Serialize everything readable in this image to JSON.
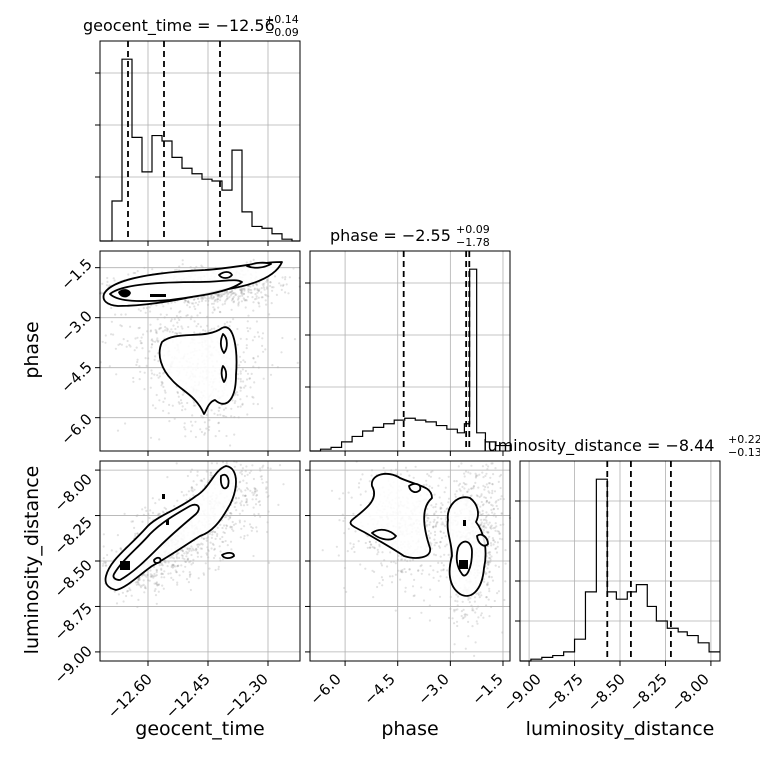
{
  "chart_data": [
    {
      "panel": "geocent_time (marginal)",
      "type": "histogram",
      "title_main": "geocent_time = −12.56",
      "title_sup": "+0.14",
      "title_sub": "−0.09",
      "median": -12.56,
      "q_low": -12.65,
      "q_high": -12.42,
      "xlim": [
        -12.72,
        -12.22
      ],
      "ylim": [
        0,
        1.1
      ],
      "bin_edges": [
        -12.72,
        -12.69,
        -12.665,
        -12.64,
        -12.615,
        -12.59,
        -12.565,
        -12.54,
        -12.515,
        -12.49,
        -12.465,
        -12.44,
        -12.415,
        -12.39,
        -12.365,
        -12.34,
        -12.315,
        -12.29,
        -12.265,
        -12.24,
        -12.22
      ],
      "values": [
        0,
        0.22,
        1.0,
        0.57,
        0.38,
        0.58,
        0.55,
        0.46,
        0.4,
        0.37,
        0.34,
        0.33,
        0.28,
        0.5,
        0.16,
        0.08,
        0.07,
        0.04,
        0.01,
        0.0
      ],
      "xticks": [
        -12.6,
        -12.45,
        -12.3
      ]
    },
    {
      "panel": "phase (marginal)",
      "type": "histogram",
      "title_main": "phase = −2.55",
      "title_sup": "+0.09",
      "title_sub": "−1.78",
      "median": -2.55,
      "q_low": -4.33,
      "q_high": -2.46,
      "xlim": [
        -7.0,
        -1.3
      ],
      "ylim": [
        0,
        1.1
      ],
      "bin_edges": [
        -7.0,
        -6.7,
        -6.4,
        -6.1,
        -5.8,
        -5.5,
        -5.2,
        -4.9,
        -4.6,
        -4.3,
        -4.0,
        -3.7,
        -3.4,
        -3.1,
        -2.8,
        -2.6,
        -2.45,
        -2.25,
        -2.0,
        -1.7,
        -1.3
      ],
      "values": [
        0.0,
        0.01,
        0.02,
        0.05,
        0.08,
        0.11,
        0.13,
        0.15,
        0.17,
        0.18,
        0.17,
        0.16,
        0.14,
        0.12,
        0.1,
        0.15,
        1.0,
        0.1,
        0.05,
        0.03
      ],
      "xticks": [
        -6.0,
        -4.5,
        -3.0,
        -1.5
      ]
    },
    {
      "panel": "luminosity_distance (marginal)",
      "type": "histogram",
      "title_main": "luminosity_distance = −8.44",
      "title_sup": "+0.22",
      "title_sub": "−0.13",
      "median": -8.44,
      "q_low": -8.57,
      "q_high": -8.22,
      "xlim": [
        -9.05,
        -7.95
      ],
      "ylim": [
        0,
        1.1
      ],
      "bin_edges": [
        -9.05,
        -8.99,
        -8.93,
        -8.87,
        -8.81,
        -8.75,
        -8.69,
        -8.63,
        -8.57,
        -8.52,
        -8.46,
        -8.41,
        -8.35,
        -8.3,
        -8.24,
        -8.18,
        -8.13,
        -8.07,
        -8.01,
        -7.95
      ],
      "values": [
        0.0,
        0.01,
        0.02,
        0.03,
        0.05,
        0.12,
        0.38,
        1.0,
        0.38,
        0.34,
        0.38,
        0.42,
        0.3,
        0.22,
        0.18,
        0.16,
        0.14,
        0.1,
        0.05
      ],
      "xticks": [
        -9.0,
        -8.75,
        -8.5,
        -8.25,
        -8.0
      ]
    },
    {
      "panel": "phase vs geocent_time",
      "type": "scatter",
      "x_param": "geocent_time",
      "y_param": "phase",
      "xlim": [
        -12.72,
        -12.22
      ],
      "ylim": [
        -7.0,
        -1.0
      ],
      "yticks": [
        -1.5,
        -3.0,
        -4.5,
        -6.0
      ],
      "clusters": [
        {
          "center": [
            -12.52,
            -2.2
          ],
          "spread": [
            0.11,
            0.22
          ],
          "n": 640
        },
        {
          "center": [
            -12.42,
            -2.0
          ],
          "spread": [
            0.09,
            0.3
          ],
          "n": 360
        },
        {
          "center": [
            -12.45,
            -4.7
          ],
          "spread": [
            0.07,
            0.8
          ],
          "n": 520
        },
        {
          "center": [
            -12.52,
            -3.6
          ],
          "spread": [
            0.1,
            0.5
          ],
          "n": 220
        }
      ]
    },
    {
      "panel": "luminosity_distance vs geocent_time",
      "type": "scatter",
      "x_param": "geocent_time",
      "y_param": "luminosity_distance",
      "xlim": [
        -12.72,
        -12.22
      ],
      "ylim": [
        -9.05,
        -7.95
      ],
      "yticks": [
        -8.0,
        -8.25,
        -8.5,
        -8.75,
        -9.0
      ],
      "clusters": [
        {
          "center": [
            -12.63,
            -8.55
          ],
          "spread": [
            0.04,
            0.07
          ],
          "n": 280
        },
        {
          "center": [
            -12.55,
            -8.4
          ],
          "spread": [
            0.05,
            0.1
          ],
          "n": 420
        },
        {
          "center": [
            -12.45,
            -8.25
          ],
          "spread": [
            0.05,
            0.12
          ],
          "n": 320
        },
        {
          "center": [
            -12.38,
            -8.1
          ],
          "spread": [
            0.05,
            0.12
          ],
          "n": 200
        }
      ]
    },
    {
      "panel": "luminosity_distance vs phase",
      "type": "scatter",
      "x_param": "phase",
      "y_param": "luminosity_distance",
      "xlim": [
        -7.0,
        -1.3
      ],
      "ylim": [
        -9.05,
        -7.95
      ],
      "clusters": [
        {
          "center": [
            -4.3,
            -8.3
          ],
          "spread": [
            0.7,
            0.15
          ],
          "n": 620
        },
        {
          "center": [
            -2.5,
            -8.45
          ],
          "spread": [
            0.3,
            0.2
          ],
          "n": 520
        },
        {
          "center": [
            -2.0,
            -8.3
          ],
          "spread": [
            0.3,
            0.2
          ],
          "n": 240
        }
      ]
    }
  ],
  "axis_labels": {
    "x1": "geocent_time",
    "x2": "phase",
    "x3": "luminosity_distance",
    "y2": "phase",
    "y3": "luminosity_distance"
  },
  "ticks": {
    "geocent_time": [
      "−12.60",
      "−12.45",
      "−12.30"
    ],
    "phase": [
      "−6.0",
      "−4.5",
      "−3.0",
      "−1.5"
    ],
    "luminosity_distance": [
      "−9.00",
      "−8.75",
      "−8.50",
      "−8.25",
      "−8.00"
    ],
    "luminosity_distance_y": [
      "−8.00",
      "−8.25",
      "−8.50",
      "−8.75",
      "−9.00"
    ]
  }
}
